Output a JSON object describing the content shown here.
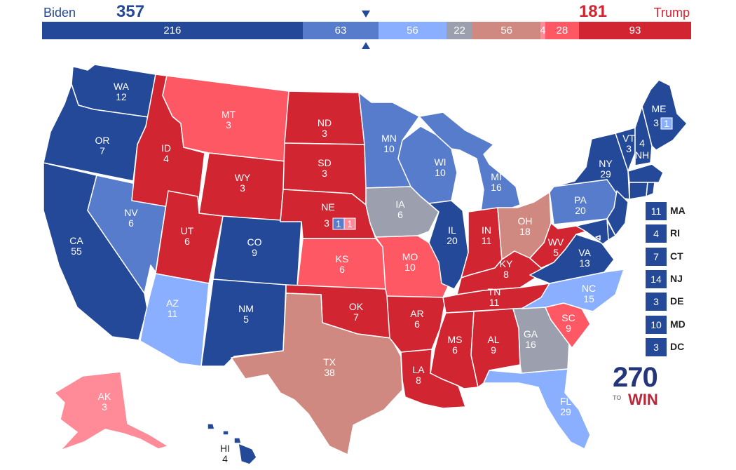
{
  "header": {
    "dem_name": "Biden",
    "dem_total": "357",
    "rep_name": "Trump",
    "rep_total": "181"
  },
  "colors": {
    "safe_dem": "#244999",
    "likely_dem": "#577ccc",
    "lean_dem": "#8aafff",
    "tossup": "#9c9fae",
    "tilt_rep": "#cf8980",
    "lean_rep": "#ff8b98",
    "likely_rep": "#ff5865",
    "safe_rep": "#d22532"
  },
  "bar": [
    {
      "value": "216",
      "weight": 216,
      "rating": "safe_dem"
    },
    {
      "value": "63",
      "weight": 63,
      "rating": "likely_dem"
    },
    {
      "value": "56",
      "weight": 56,
      "rating": "lean_dem"
    },
    {
      "value": "22",
      "weight": 22,
      "rating": "tossup"
    },
    {
      "value": "56",
      "weight": 56,
      "rating": "tilt_rep"
    },
    {
      "value": "4",
      "weight": 4,
      "rating": "lean_rep"
    },
    {
      "value": "28",
      "weight": 28,
      "rating": "likely_rep"
    },
    {
      "value": "93",
      "weight": 93,
      "rating": "safe_rep"
    }
  ],
  "states": [
    {
      "abbr": "WA",
      "ev": "12",
      "rating": "safe_dem"
    },
    {
      "abbr": "OR",
      "ev": "7",
      "rating": "safe_dem"
    },
    {
      "abbr": "CA",
      "ev": "55",
      "rating": "safe_dem"
    },
    {
      "abbr": "NV",
      "ev": "6",
      "rating": "likely_dem"
    },
    {
      "abbr": "ID",
      "ev": "4",
      "rating": "safe_rep"
    },
    {
      "abbr": "MT",
      "ev": "3",
      "rating": "likely_rep"
    },
    {
      "abbr": "WY",
      "ev": "3",
      "rating": "safe_rep"
    },
    {
      "abbr": "UT",
      "ev": "6",
      "rating": "safe_rep"
    },
    {
      "abbr": "AZ",
      "ev": "11",
      "rating": "lean_dem"
    },
    {
      "abbr": "CO",
      "ev": "9",
      "rating": "safe_dem"
    },
    {
      "abbr": "NM",
      "ev": "5",
      "rating": "safe_dem"
    },
    {
      "abbr": "ND",
      "ev": "3",
      "rating": "safe_rep"
    },
    {
      "abbr": "SD",
      "ev": "3",
      "rating": "safe_rep"
    },
    {
      "abbr": "NE",
      "ev": "3",
      "rating": "safe_rep"
    },
    {
      "abbr": "KS",
      "ev": "6",
      "rating": "likely_rep"
    },
    {
      "abbr": "OK",
      "ev": "7",
      "rating": "safe_rep"
    },
    {
      "abbr": "TX",
      "ev": "38",
      "rating": "tilt_rep"
    },
    {
      "abbr": "MN",
      "ev": "10",
      "rating": "likely_dem"
    },
    {
      "abbr": "IA",
      "ev": "6",
      "rating": "tossup"
    },
    {
      "abbr": "MO",
      "ev": "10",
      "rating": "likely_rep"
    },
    {
      "abbr": "AR",
      "ev": "6",
      "rating": "safe_rep"
    },
    {
      "abbr": "LA",
      "ev": "8",
      "rating": "safe_rep"
    },
    {
      "abbr": "WI",
      "ev": "10",
      "rating": "likely_dem"
    },
    {
      "abbr": "IL",
      "ev": "20",
      "rating": "safe_dem"
    },
    {
      "abbr": "MI",
      "ev": "16",
      "rating": "likely_dem"
    },
    {
      "abbr": "IN",
      "ev": "11",
      "rating": "safe_rep"
    },
    {
      "abbr": "OH",
      "ev": "18",
      "rating": "tilt_rep"
    },
    {
      "abbr": "KY",
      "ev": "8",
      "rating": "safe_rep"
    },
    {
      "abbr": "TN",
      "ev": "11",
      "rating": "safe_rep"
    },
    {
      "abbr": "MS",
      "ev": "6",
      "rating": "safe_rep"
    },
    {
      "abbr": "AL",
      "ev": "9",
      "rating": "safe_rep"
    },
    {
      "abbr": "GA",
      "ev": "16",
      "rating": "tossup"
    },
    {
      "abbr": "FL",
      "ev": "29",
      "rating": "lean_dem"
    },
    {
      "abbr": "SC",
      "ev": "9",
      "rating": "likely_rep"
    },
    {
      "abbr": "NC",
      "ev": "15",
      "rating": "lean_dem"
    },
    {
      "abbr": "VA",
      "ev": "13",
      "rating": "safe_dem"
    },
    {
      "abbr": "WV",
      "ev": "5",
      "rating": "safe_rep"
    },
    {
      "abbr": "PA",
      "ev": "20",
      "rating": "likely_dem"
    },
    {
      "abbr": "NY",
      "ev": "29",
      "rating": "safe_dem"
    },
    {
      "abbr": "VT",
      "ev": "3",
      "rating": "safe_dem"
    },
    {
      "abbr": "NH",
      "ev": "4",
      "rating": "safe_dem"
    },
    {
      "abbr": "ME",
      "ev": "3",
      "rating": "safe_dem"
    },
    {
      "abbr": "AK",
      "ev": "3",
      "rating": "lean_rep"
    },
    {
      "abbr": "HI",
      "ev": "4",
      "rating": "safe_dem"
    }
  ],
  "districts": {
    "me": [
      {
        "ev": "1",
        "rating": "lean_dem"
      }
    ],
    "ne": [
      {
        "ev": "1",
        "rating": "likely_dem"
      },
      {
        "ev": "1",
        "rating": "lean_rep"
      }
    ]
  },
  "small_states": [
    {
      "abbr": "MA",
      "ev": "11",
      "rating": "safe_dem"
    },
    {
      "abbr": "RI",
      "ev": "4",
      "rating": "safe_dem"
    },
    {
      "abbr": "CT",
      "ev": "7",
      "rating": "safe_dem"
    },
    {
      "abbr": "NJ",
      "ev": "14",
      "rating": "safe_dem"
    },
    {
      "abbr": "DE",
      "ev": "3",
      "rating": "safe_dem"
    },
    {
      "abbr": "MD",
      "ev": "10",
      "rating": "safe_dem"
    },
    {
      "abbr": "DC",
      "ev": "3",
      "rating": "safe_dem"
    }
  ],
  "logo": {
    "number": "270",
    "to": "TO",
    "win": "WIN"
  }
}
